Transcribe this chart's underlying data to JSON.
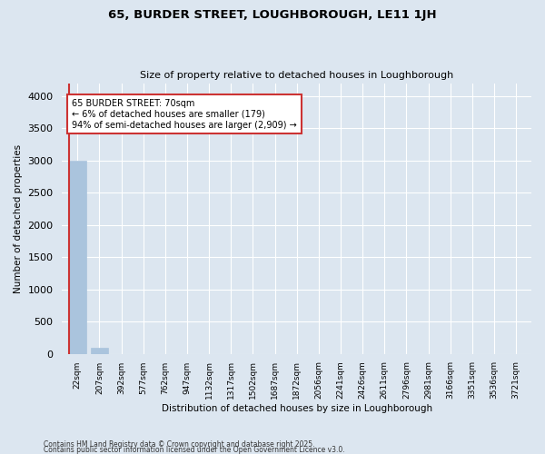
{
  "title1": "65, BURDER STREET, LOUGHBOROUGH, LE11 1JH",
  "title2": "Size of property relative to detached houses in Loughborough",
  "xlabel": "Distribution of detached houses by size in Loughborough",
  "ylabel": "Number of detached properties",
  "categories": [
    "22sqm",
    "207sqm",
    "392sqm",
    "577sqm",
    "762sqm",
    "947sqm",
    "1132sqm",
    "1317sqm",
    "1502sqm",
    "1687sqm",
    "1872sqm",
    "2056sqm",
    "2241sqm",
    "2426sqm",
    "2611sqm",
    "2796sqm",
    "2981sqm",
    "3166sqm",
    "3351sqm",
    "3536sqm",
    "3721sqm"
  ],
  "values": [
    3000,
    100,
    0,
    0,
    0,
    0,
    0,
    0,
    0,
    0,
    0,
    0,
    0,
    0,
    0,
    0,
    0,
    0,
    0,
    0,
    0
  ],
  "bar_color": "#aac4dd",
  "highlight_color": "#cc3333",
  "annotation_line1": "65 BURDER STREET: 70sqm",
  "annotation_line2": "← 6% of detached houses are smaller (179)",
  "annotation_line3": "94% of semi-detached houses are larger (2,909) →",
  "annotation_box_color": "#cc3333",
  "background_color": "#dce6f0",
  "grid_color": "#ffffff",
  "ylim": [
    0,
    4200
  ],
  "yticks": [
    0,
    500,
    1000,
    1500,
    2000,
    2500,
    3000,
    3500,
    4000
  ],
  "footnote1": "Contains HM Land Registry data © Crown copyright and database right 2025.",
  "footnote2": "Contains public sector information licensed under the Open Government Licence v3.0."
}
